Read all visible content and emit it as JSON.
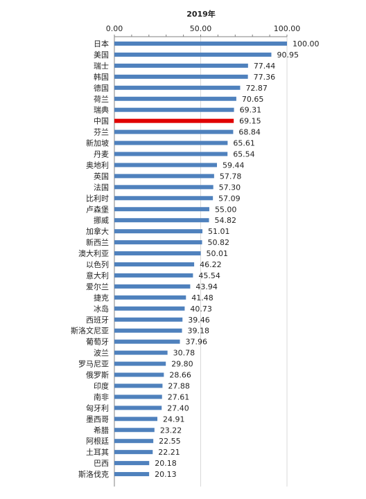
{
  "chart_data": {
    "type": "bar",
    "orientation": "horizontal",
    "title": "2019年",
    "xlim": [
      0,
      100
    ],
    "x_ticks": [
      "0.00",
      "50.00",
      "100.00"
    ],
    "grid": true,
    "highlight_category": "中国",
    "colors": {
      "bar": "#4f81bd",
      "highlight": "#e00000",
      "grid": "#d9d9d9",
      "axis": "#808080",
      "text": "#222222"
    },
    "categories": [
      "日本",
      "美国",
      "瑞士",
      "韩国",
      "德国",
      "荷兰",
      "瑞典",
      "中国",
      "芬兰",
      "新加坡",
      "丹麦",
      "奥地利",
      "英国",
      "法国",
      "比利时",
      "卢森堡",
      "挪威",
      "加拿大",
      "新西兰",
      "澳大利亚",
      "以色列",
      "意大利",
      "爱尔兰",
      "捷克",
      "冰岛",
      "西班牙",
      "斯洛文尼亚",
      "葡萄牙",
      "波兰",
      "罗马尼亚",
      "俄罗斯",
      "印度",
      "南非",
      "匈牙利",
      "墨西哥",
      "希腊",
      "阿根廷",
      "土耳其",
      "巴西",
      "斯洛伐克"
    ],
    "values": [
      100.0,
      90.95,
      77.44,
      77.36,
      72.87,
      70.65,
      69.31,
      69.15,
      68.84,
      65.61,
      65.54,
      59.44,
      57.78,
      57.3,
      57.09,
      55.0,
      54.82,
      51.01,
      50.82,
      50.01,
      46.22,
      45.54,
      43.94,
      41.48,
      40.73,
      39.46,
      39.18,
      37.96,
      30.78,
      29.8,
      28.66,
      27.88,
      27.61,
      27.4,
      24.91,
      23.22,
      22.55,
      22.21,
      20.18,
      20.13
    ],
    "value_labels": [
      "100.00",
      "90.95",
      "77.44",
      "77.36",
      "72.87",
      "70.65",
      "69.31",
      "69.15",
      "68.84",
      "65.61",
      "65.54",
      "59.44",
      "57.78",
      "57.30",
      "57.09",
      "55.00",
      "54.82",
      "51.01",
      "50.82",
      "50.01",
      "46.22",
      "45.54",
      "43.94",
      "41.48",
      "40.73",
      "39.46",
      "39.18",
      "37.96",
      "30.78",
      "29.80",
      "28.66",
      "27.88",
      "27.61",
      "27.40",
      "24.91",
      "23.22",
      "22.55",
      "22.21",
      "20.18",
      "20.13"
    ]
  }
}
